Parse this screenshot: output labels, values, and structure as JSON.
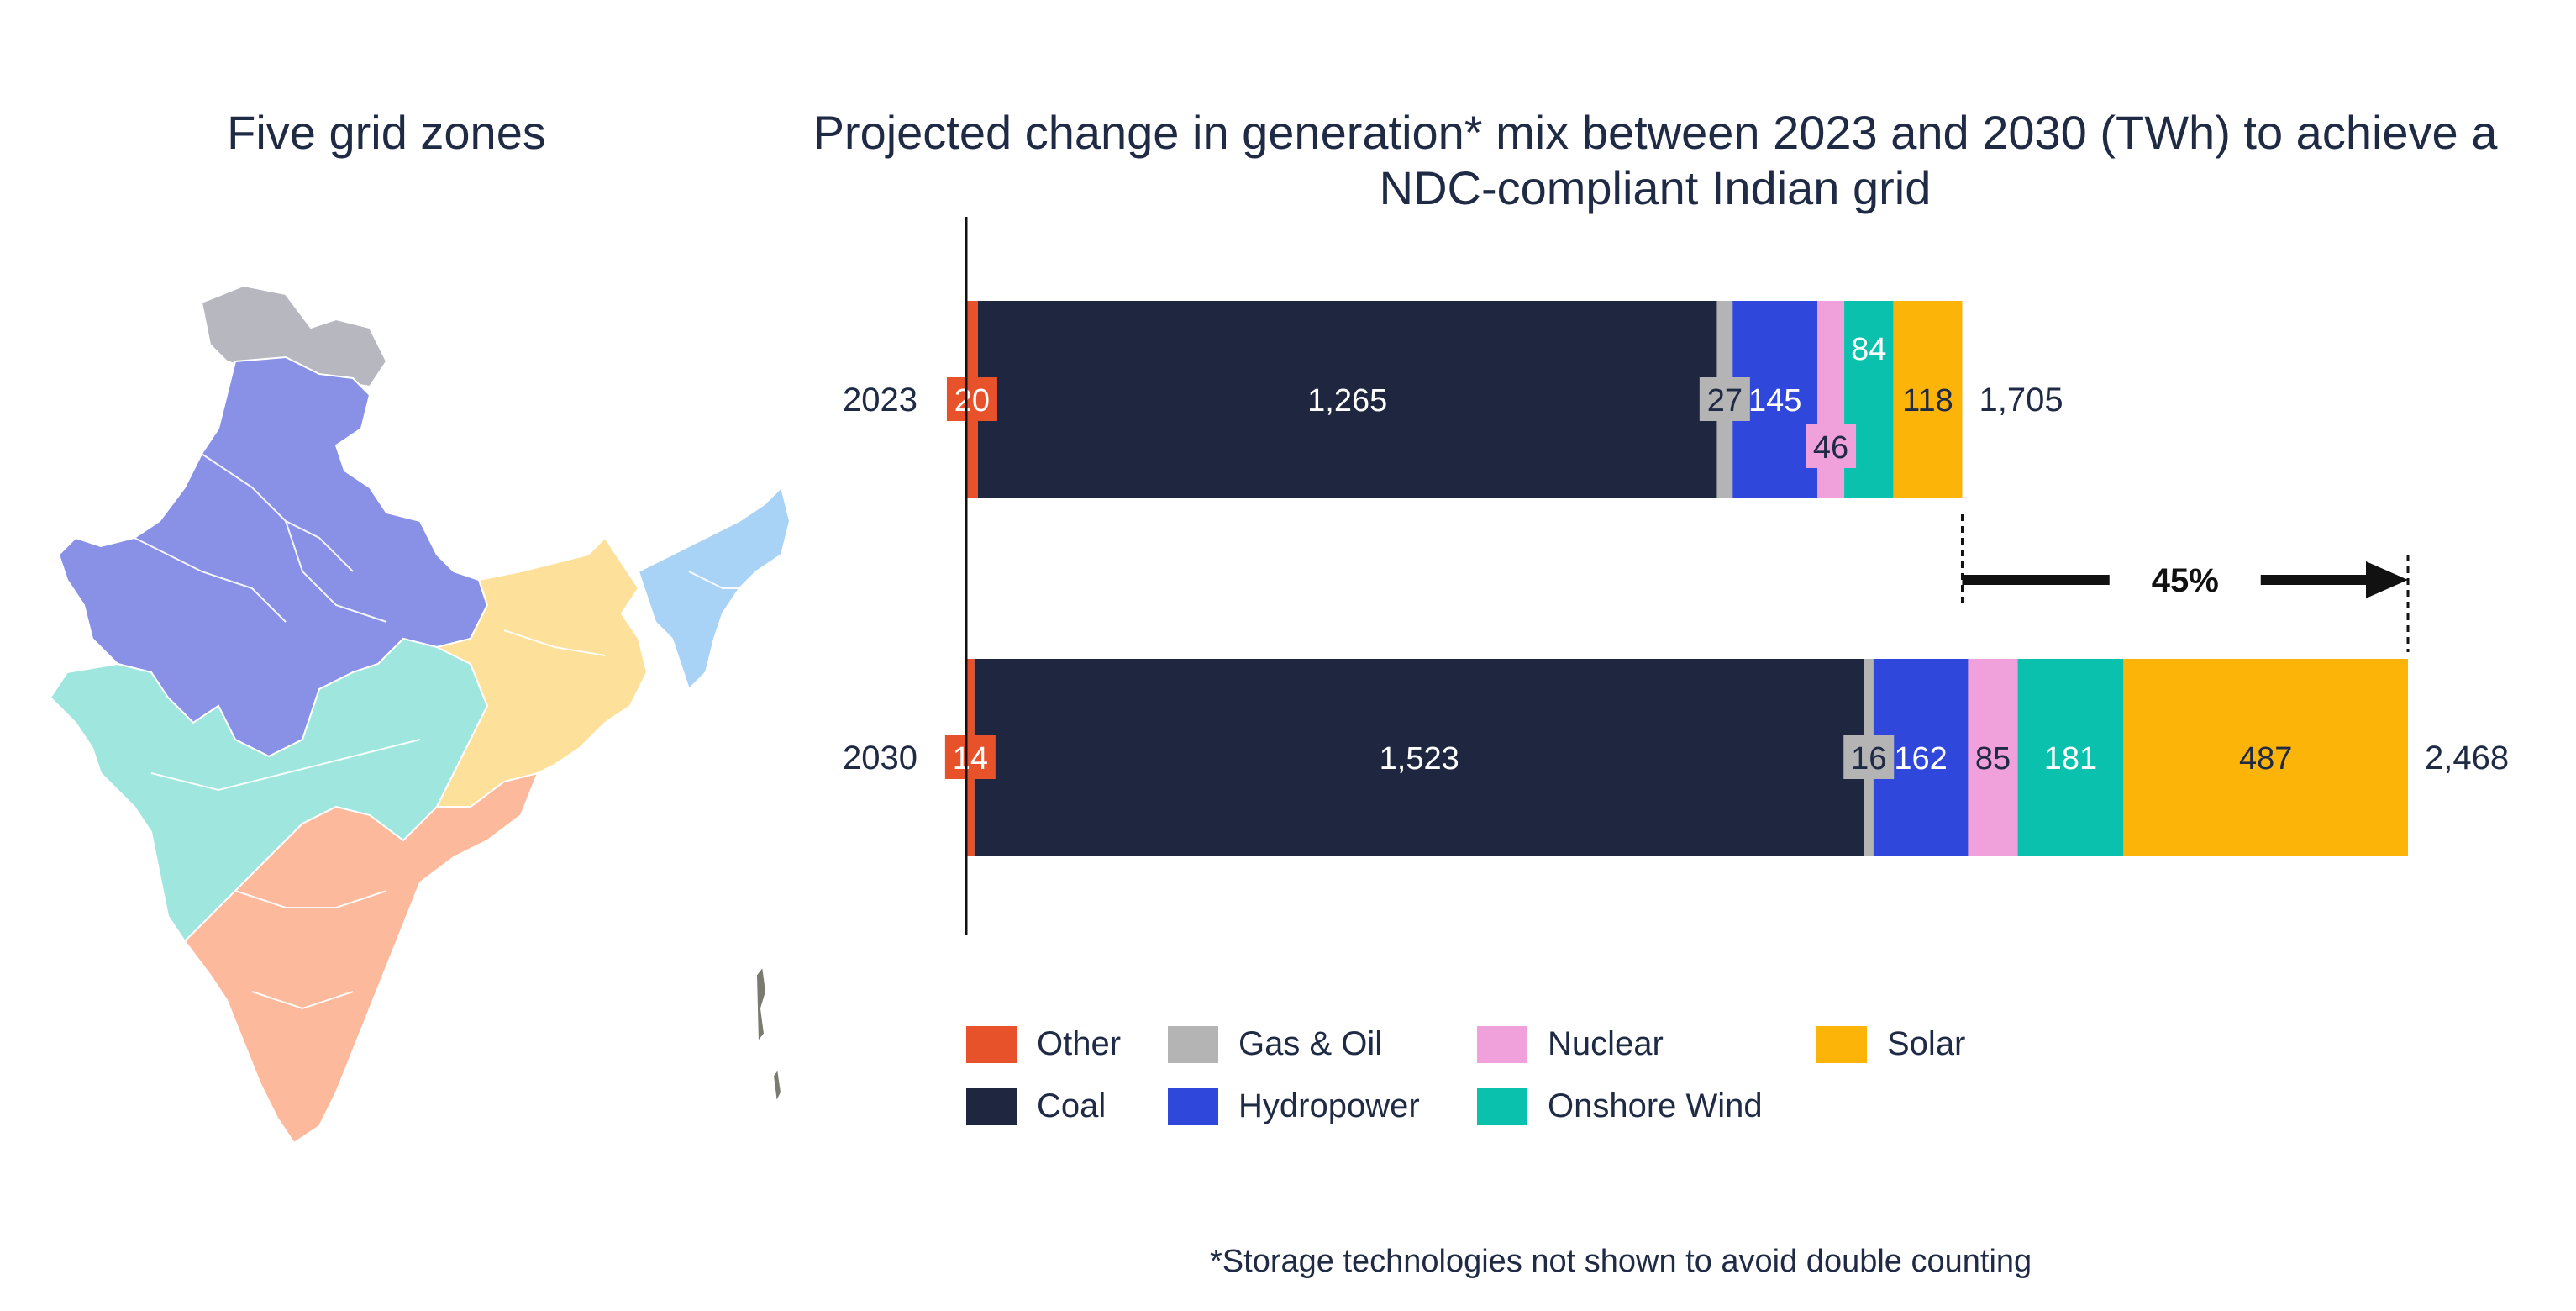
{
  "map": {
    "title": "Five grid zones",
    "zone_colors": {
      "northern": "#8891e6",
      "western": "#9ee6de",
      "southern": "#fdb99b",
      "eastern": "#fde09a",
      "north_eastern": "#a9d2f7",
      "disputed": "#b7b7c0",
      "islands": "#7a7a70"
    }
  },
  "chart_data": {
    "type": "bar",
    "orientation": "horizontal",
    "stacked": true,
    "title": "Projected change in generation* mix between 2023 and 2030 (TWh) to achieve a NDC-compliant Indian grid",
    "categories": [
      "2023",
      "2030"
    ],
    "series": [
      {
        "name": "Other",
        "color": "#e8522b",
        "values": [
          20,
          14
        ]
      },
      {
        "name": "Coal",
        "color": "#1f2740",
        "values": [
          1265,
          1523
        ]
      },
      {
        "name": "Gas & Oil",
        "color": "#b4b4b4",
        "values": [
          27,
          16
        ]
      },
      {
        "name": "Hydropower",
        "color": "#2f48db",
        "values": [
          145,
          162
        ]
      },
      {
        "name": "Nuclear",
        "color": "#f0a0db",
        "values": [
          46,
          85
        ]
      },
      {
        "name": "Onshore Wind",
        "color": "#0ac1ad",
        "values": [
          84,
          181
        ]
      },
      {
        "name": "Solar",
        "color": "#fdb409",
        "values": [
          118,
          487
        ]
      }
    ],
    "value_labels": [
      [
        "20",
        "1,265",
        "27",
        "145",
        "46",
        "84",
        "118"
      ],
      [
        "14",
        "1,523",
        "16",
        "162",
        "85",
        "181",
        "487"
      ]
    ],
    "totals": [
      1705,
      2468
    ],
    "total_labels": [
      "1,705",
      "2,468"
    ],
    "change_label": "45%",
    "xlim": [
      0,
      2468
    ]
  },
  "footnote": "*Storage technologies not shown to avoid double counting"
}
